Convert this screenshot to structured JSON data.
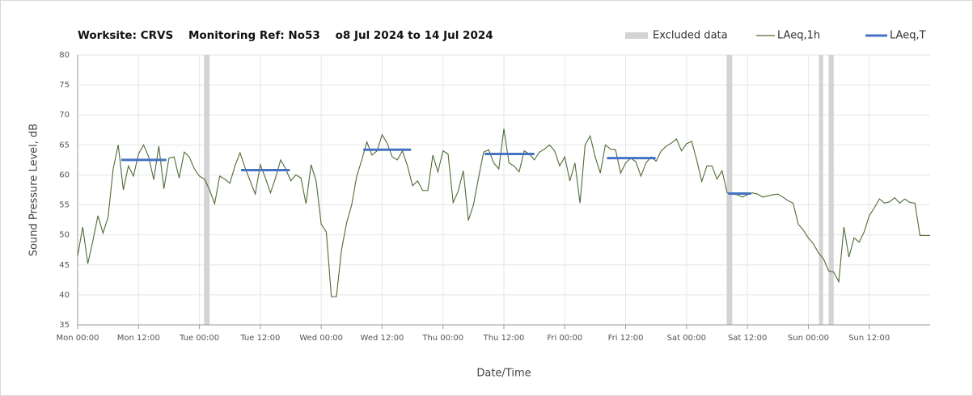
{
  "chart_data": {
    "type": "line",
    "title": "Worksite: CRVS    Monitoring Ref: No53    o8 Jul 2024 to 14 Jul 2024",
    "x_label": "Date/Time",
    "y_label": "Sound Pressure Level, dB",
    "xlim": [
      0,
      168
    ],
    "xticks": [
      {
        "value": 0,
        "label": "Mon 00:00"
      },
      {
        "value": 12,
        "label": "Mon 12:00"
      },
      {
        "value": 24,
        "label": "Tue 00:00"
      },
      {
        "value": 36,
        "label": "Tue 12:00"
      },
      {
        "value": 48,
        "label": "Wed 00:00"
      },
      {
        "value": 60,
        "label": "Wed 12:00"
      },
      {
        "value": 72,
        "label": "Thu 00:00"
      },
      {
        "value": 84,
        "label": "Thu 12:00"
      },
      {
        "value": 96,
        "label": "Fri 00:00"
      },
      {
        "value": 108,
        "label": "Fri 12:00"
      },
      {
        "value": 120,
        "label": "Sat 00:00"
      },
      {
        "value": 132,
        "label": "Sat 12:00"
      },
      {
        "value": 144,
        "label": "Sun 00:00"
      },
      {
        "value": 156,
        "label": "Sun 12:00"
      }
    ],
    "ylim": [
      35,
      80
    ],
    "yticks": [
      35,
      40,
      45,
      50,
      55,
      60,
      65,
      70,
      75,
      80
    ],
    "grid": true,
    "legend": "top-right",
    "x": [
      0,
      1,
      2,
      3,
      4,
      5,
      6,
      7,
      8,
      9,
      10,
      11,
      12,
      13,
      14,
      15,
      16,
      17,
      18,
      19,
      20,
      21,
      22,
      23,
      24,
      25,
      26,
      27,
      28,
      29,
      30,
      31,
      32,
      33,
      34,
      35,
      36,
      37,
      38,
      39,
      40,
      41,
      42,
      43,
      44,
      45,
      46,
      47,
      48,
      49,
      50,
      51,
      52,
      53,
      54,
      55,
      56,
      57,
      58,
      59,
      60,
      61,
      62,
      63,
      64,
      65,
      66,
      67,
      68,
      69,
      70,
      71,
      72,
      73,
      74,
      75,
      76,
      77,
      78,
      79,
      80,
      81,
      82,
      83,
      84,
      85,
      86,
      87,
      88,
      89,
      90,
      91,
      92,
      93,
      94,
      95,
      96,
      97,
      98,
      99,
      100,
      101,
      102,
      103,
      104,
      105,
      106,
      107,
      108,
      109,
      110,
      111,
      112,
      113,
      114,
      115,
      116,
      117,
      118,
      119,
      120,
      121,
      122,
      123,
      124,
      125,
      126,
      127,
      128,
      129,
      130,
      131,
      132,
      133,
      134,
      135,
      136,
      137,
      138,
      139,
      140,
      141,
      142,
      143,
      144,
      145,
      146,
      147,
      148,
      149,
      150,
      151,
      152,
      153,
      154,
      155,
      156,
      157,
      158,
      159,
      160,
      161,
      162,
      163,
      164,
      165,
      166,
      167,
      168
    ],
    "series": [
      {
        "name": "LAeq,1h",
        "color": "#4f6b35",
        "values": [
          46.5,
          51.3,
          45.2,
          49,
          53.2,
          50.3,
          53,
          61,
          65,
          57.5,
          61.5,
          59.8,
          63.5,
          65,
          63,
          59.2,
          64.8,
          57.7,
          62.8,
          63,
          59.5,
          63.8,
          63,
          61,
          59.8,
          59.3,
          57.5,
          55.2,
          59.8,
          59.3,
          58.6,
          61.5,
          63.7,
          61.2,
          59,
          56.8,
          61.7,
          59.5,
          57,
          59.5,
          62.5,
          61,
          59,
          60,
          59.5,
          55.2,
          61.7,
          59,
          51.8,
          50.5,
          39.7,
          39.7,
          47.5,
          52,
          55,
          59.8,
          62.5,
          65.5,
          63.3,
          64,
          66.7,
          65.3,
          63,
          62.5,
          64,
          61.5,
          58.2,
          59,
          57.4,
          57.4,
          63.3,
          60.5,
          64,
          63.5,
          55.4,
          57.3,
          60.7,
          52.4,
          55,
          59.5,
          63.8,
          64.2,
          62,
          61,
          67.7,
          62,
          61.5,
          60.5,
          64,
          63.5,
          62.5,
          63.8,
          64.3,
          65,
          64,
          61.5,
          63,
          59,
          62,
          55.3,
          65,
          66.5,
          63,
          60.3,
          65,
          64.3,
          64.2,
          60.3,
          62,
          62.8,
          62.2,
          59.8,
          62,
          63,
          62.3,
          64,
          64.8,
          65.3,
          66,
          64,
          65.2,
          65.6,
          62.5,
          58.9,
          61.5,
          61.5,
          59.3,
          60.7,
          57,
          56.8,
          56.7,
          56.3,
          56.7,
          57,
          56.8,
          56.3,
          56.5,
          56.7,
          56.8,
          56.3,
          55.7,
          55.3,
          51.8,
          50.8,
          49.5,
          48.5,
          47,
          46,
          44,
          43.8,
          42.2,
          51.3,
          46.3,
          49.5,
          48.8,
          50.5,
          53.2,
          54.5,
          56,
          55.3,
          55.5,
          56.2,
          55.3,
          56,
          55.4,
          55.3,
          49.9,
          49.9,
          49.9
        ]
      }
    ],
    "periods": {
      "name": "LAeq,T",
      "color": "#4472c4",
      "items": [
        {
          "start": 8.6,
          "end": 17.5,
          "value": 62.5
        },
        {
          "start": 32.2,
          "end": 41.8,
          "value": 60.8
        },
        {
          "start": 56.3,
          "end": 65.7,
          "value": 64.2
        },
        {
          "start": 80.2,
          "end": 90,
          "value": 63.5
        },
        {
          "start": 104.3,
          "end": 113.9,
          "value": 62.8
        },
        {
          "start": 128.2,
          "end": 132.7,
          "value": 56.9
        }
      ]
    },
    "excluded": {
      "name": "Excluded data",
      "color": "#d3d3d3",
      "ranges": [
        {
          "start": 24.9,
          "end": 26
        },
        {
          "start": 127.9,
          "end": 129
        },
        {
          "start": 146.1,
          "end": 146.9
        },
        {
          "start": 148,
          "end": 149
        }
      ]
    }
  }
}
